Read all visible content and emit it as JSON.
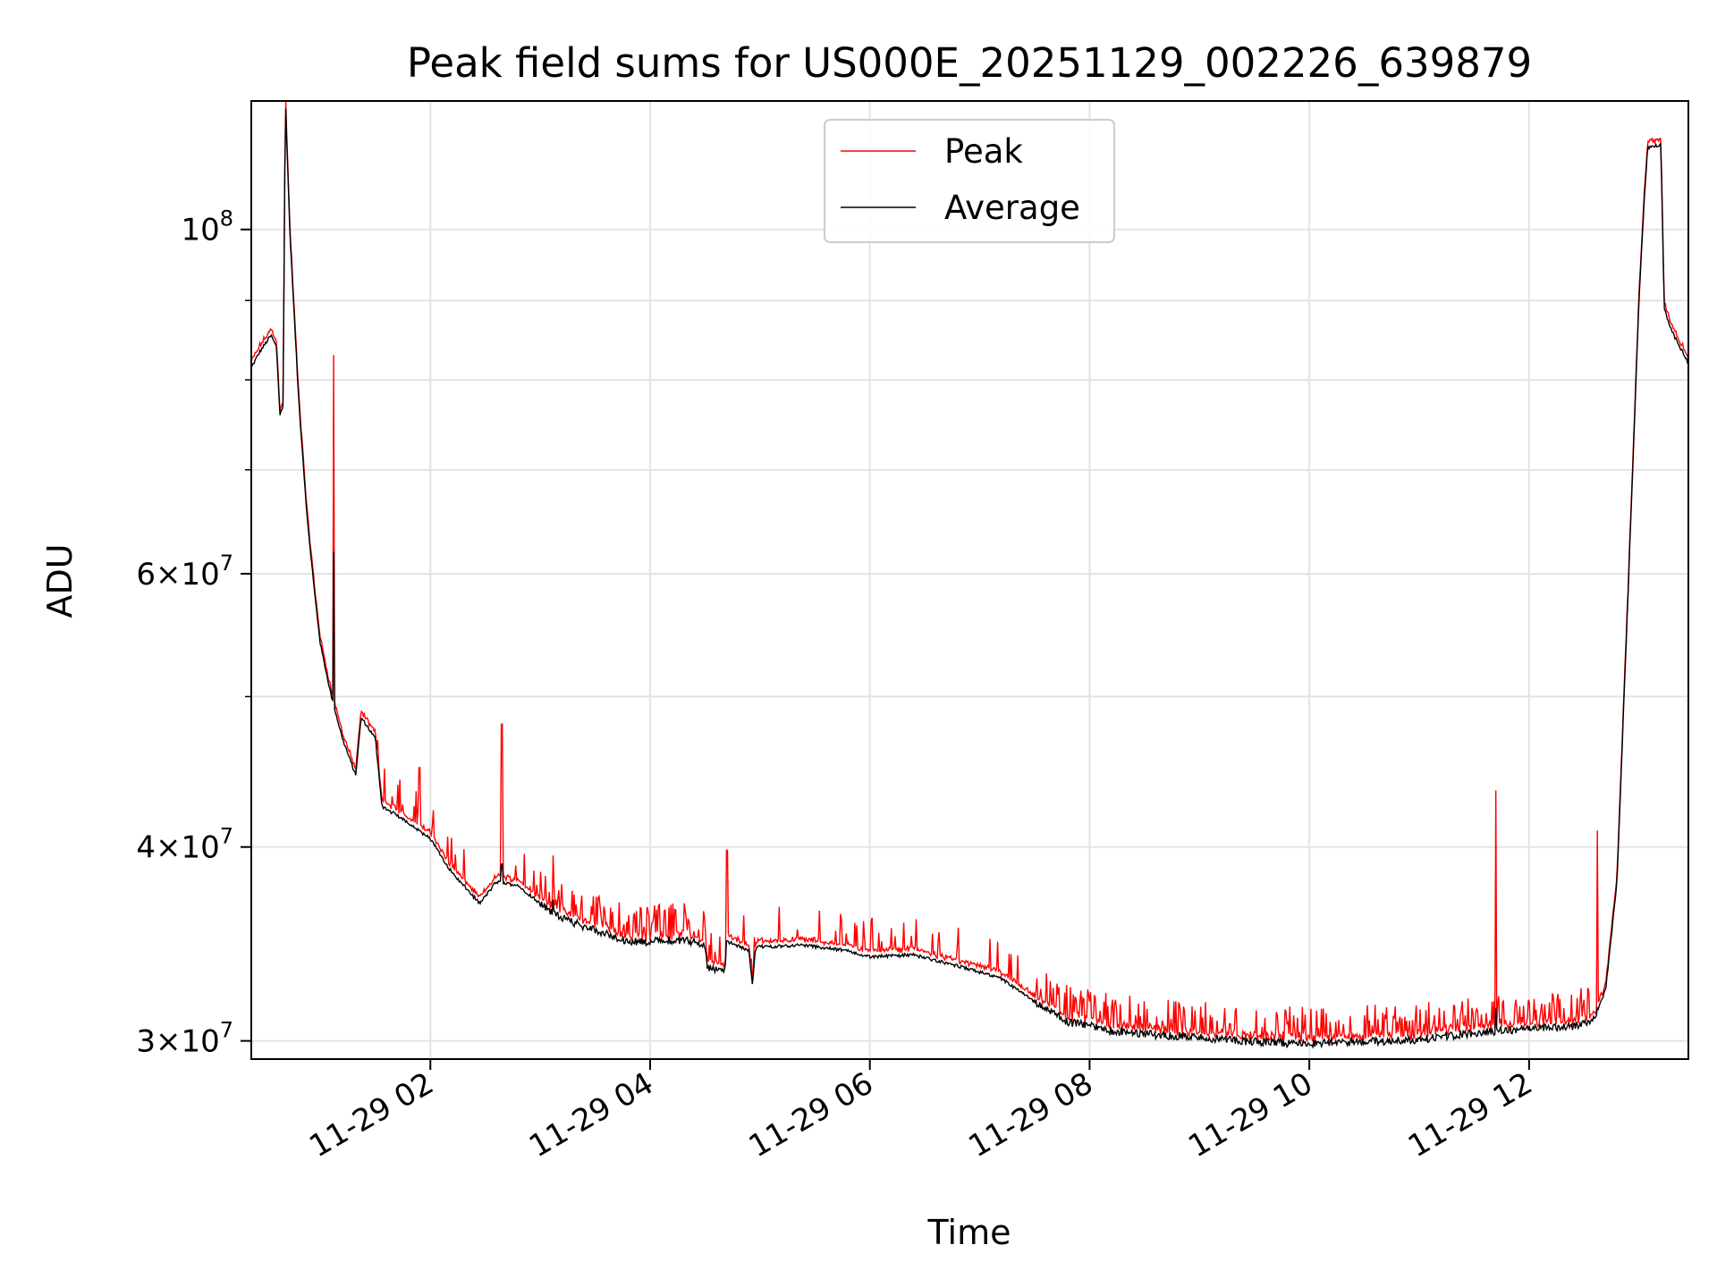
{
  "chart_data": {
    "type": "line",
    "title": "Peak field sums for US000E_20251129_002226_639879",
    "xlabel": "Time",
    "ylabel": "ADU",
    "yscale": "log",
    "ylim": [
      29200000,
      121000000
    ],
    "xlim_hours": [
      0.37,
      13.45
    ],
    "grid": true,
    "legend_position": "top-center",
    "x_ticks": [
      {
        "hour": 2,
        "label": "11-29 02"
      },
      {
        "hour": 4,
        "label": "11-29 04"
      },
      {
        "hour": 6,
        "label": "11-29 06"
      },
      {
        "hour": 8,
        "label": "11-29 08"
      },
      {
        "hour": 10,
        "label": "11-29 10"
      },
      {
        "hour": 12,
        "label": "11-29 12"
      }
    ],
    "y_major_ticks": [
      {
        "value": 100000000,
        "base": "10",
        "exp": "8",
        "mult": ""
      },
      {
        "value": 60000000,
        "base": "10",
        "exp": "7",
        "mult": "6"
      },
      {
        "value": 40000000,
        "base": "10",
        "exp": "7",
        "mult": "4"
      },
      {
        "value": 30000000,
        "base": "10",
        "exp": "7",
        "mult": "3"
      }
    ],
    "y_minor_gridlines": [
      50000000,
      70000000,
      80000000,
      90000000
    ],
    "series": [
      {
        "name": "Peak",
        "color": "#ff0000",
        "role": "peak"
      },
      {
        "name": "Average",
        "color": "#000000",
        "role": "average"
      }
    ],
    "baseline_points": [
      [
        0.37,
        81500000
      ],
      [
        0.45,
        83500000
      ],
      [
        0.55,
        85500000
      ],
      [
        0.6,
        84000000
      ],
      [
        0.63,
        76000000
      ],
      [
        0.66,
        77000000
      ],
      [
        0.68,
        122000000
      ],
      [
        0.72,
        100000000
      ],
      [
        0.8,
        78000000
      ],
      [
        0.88,
        65000000
      ],
      [
        0.95,
        58000000
      ],
      [
        1.0,
        54000000
      ],
      [
        1.1,
        50000000
      ],
      [
        1.2,
        47000000
      ],
      [
        1.32,
        44500000
      ],
      [
        1.37,
        48500000
      ],
      [
        1.5,
        47000000
      ],
      [
        1.56,
        42500000
      ],
      [
        1.8,
        41500000
      ],
      [
        2.0,
        40500000
      ],
      [
        2.2,
        38500000
      ],
      [
        2.45,
        36800000
      ],
      [
        2.6,
        38000000
      ],
      [
        2.8,
        37800000
      ],
      [
        3.0,
        36800000
      ],
      [
        3.2,
        36000000
      ],
      [
        3.5,
        35400000
      ],
      [
        3.8,
        34800000
      ],
      [
        4.0,
        34800000
      ],
      [
        4.3,
        34900000
      ],
      [
        4.5,
        34600000
      ],
      [
        4.52,
        33500000
      ],
      [
        4.68,
        33300000
      ],
      [
        4.7,
        34800000
      ],
      [
        4.9,
        34300000
      ],
      [
        4.93,
        32600000
      ],
      [
        4.96,
        34500000
      ],
      [
        5.4,
        34600000
      ],
      [
        5.8,
        34300000
      ],
      [
        6.0,
        34000000
      ],
      [
        6.4,
        34100000
      ],
      [
        6.9,
        33400000
      ],
      [
        7.2,
        32900000
      ],
      [
        7.5,
        31800000
      ],
      [
        7.8,
        30900000
      ],
      [
        8.2,
        30500000
      ],
      [
        8.6,
        30300000
      ],
      [
        9.0,
        30200000
      ],
      [
        9.5,
        30000000
      ],
      [
        10.0,
        29900000
      ],
      [
        10.5,
        30000000
      ],
      [
        11.0,
        30100000
      ],
      [
        11.5,
        30400000
      ],
      [
        12.0,
        30600000
      ],
      [
        12.4,
        30700000
      ],
      [
        12.6,
        31000000
      ],
      [
        12.7,
        32500000
      ],
      [
        12.8,
        38000000
      ],
      [
        12.9,
        58000000
      ],
      [
        13.0,
        90000000
      ],
      [
        13.05,
        105000000
      ],
      [
        13.08,
        113000000
      ],
      [
        13.2,
        113500000
      ],
      [
        13.23,
        89000000
      ],
      [
        13.3,
        86000000
      ],
      [
        13.45,
        82000000
      ]
    ],
    "spikes": [
      {
        "hour": 1.12,
        "peak": 83000000,
        "average": 62000000
      },
      {
        "hour": 1.9,
        "peak": 45000000,
        "average": 41000000
      },
      {
        "hour": 2.65,
        "peak": 48000000,
        "average": 39000000
      },
      {
        "hour": 3.12,
        "peak": 39500000,
        "average": 37000000
      },
      {
        "hour": 4.7,
        "peak": 39800000,
        "average": 34800000
      },
      {
        "hour": 11.7,
        "peak": 43500000,
        "average": 31500000
      },
      {
        "hour": 12.62,
        "peak": 41000000,
        "average": 31500000
      }
    ]
  }
}
